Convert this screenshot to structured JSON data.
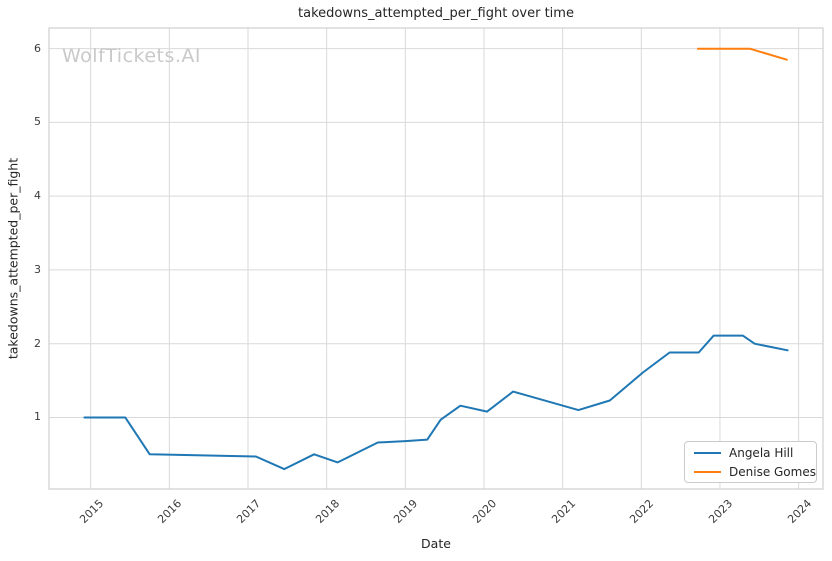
{
  "figure": {
    "title": "takedowns_attempted_per_fight over time",
    "watermark": "WolfTickets.AI",
    "xlabel": "Date",
    "ylabel": "takedowns_attempted_per_fight"
  },
  "chart_data": {
    "type": "line",
    "title": "takedowns_attempted_per_fight over time",
    "xlabel": "Date",
    "ylabel": "takedowns_attempted_per_fight",
    "xlim": [
      2014.47,
      2024.31
    ],
    "ylim": [
      0.03,
      6.28
    ],
    "xticks": [
      2015,
      2016,
      2017,
      2018,
      2019,
      2020,
      2021,
      2022,
      2023,
      2024
    ],
    "yticks": [
      1,
      2,
      3,
      4,
      5,
      6
    ],
    "grid": true,
    "legend_position": "lower right",
    "watermark": "WolfTickets.AI",
    "series": [
      {
        "name": "Angela Hill",
        "color": "#1f77b4",
        "points": [
          [
            2014.92,
            1.0
          ],
          [
            2015.44,
            1.0
          ],
          [
            2015.75,
            0.5
          ],
          [
            2017.1,
            0.47
          ],
          [
            2017.46,
            0.3
          ],
          [
            2017.84,
            0.5
          ],
          [
            2018.14,
            0.39
          ],
          [
            2018.65,
            0.66
          ],
          [
            2019.0,
            0.68
          ],
          [
            2019.28,
            0.7
          ],
          [
            2019.45,
            0.97
          ],
          [
            2019.7,
            1.16
          ],
          [
            2020.04,
            1.08
          ],
          [
            2020.37,
            1.35
          ],
          [
            2021.2,
            1.1
          ],
          [
            2021.6,
            1.23
          ],
          [
            2022.02,
            1.61
          ],
          [
            2022.36,
            1.88
          ],
          [
            2022.73,
            1.88
          ],
          [
            2022.92,
            2.11
          ],
          [
            2023.29,
            2.11
          ],
          [
            2023.44,
            2.0
          ],
          [
            2023.86,
            1.91
          ]
        ]
      },
      {
        "name": "Denise Gomes",
        "color": "#ff7f0e",
        "points": [
          [
            2022.72,
            6.0
          ],
          [
            2023.38,
            6.0
          ],
          [
            2023.85,
            5.85
          ]
        ]
      }
    ]
  },
  "colors": {
    "background": "#ffffff",
    "grid": "#d9d9d9",
    "spine": "#cfcfcf",
    "text": "#262626",
    "tick_text": "#3b3b3b",
    "watermark": "#c9c9c9",
    "series_blue": "#1f77b4",
    "series_orange": "#ff7f0e"
  }
}
